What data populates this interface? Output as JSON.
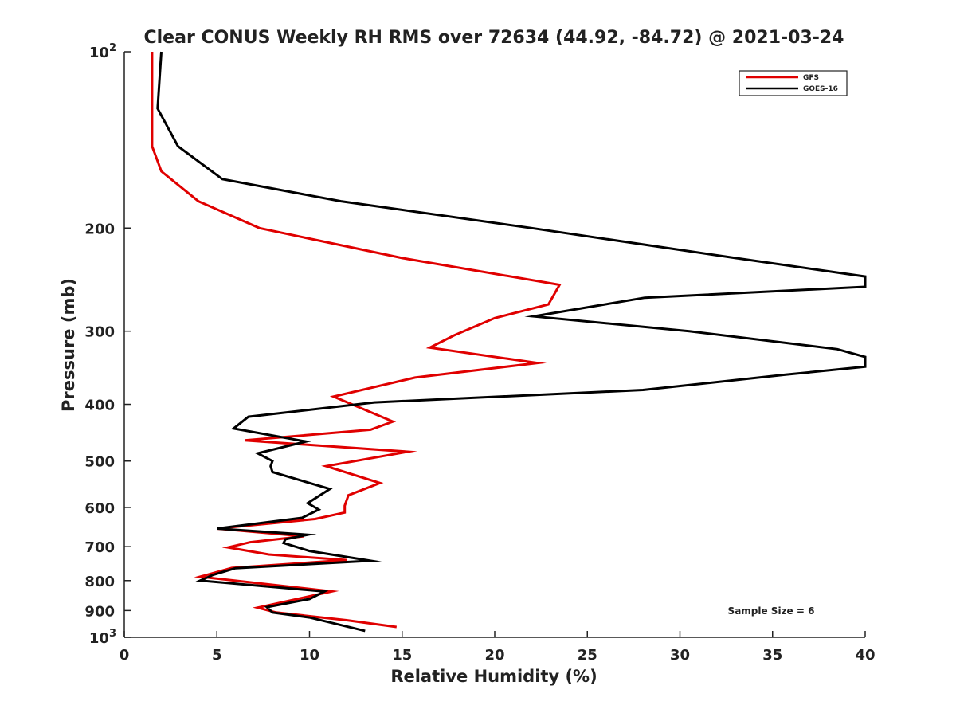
{
  "chart_data": {
    "type": "line",
    "title": "Clear CONUS Weekly RH RMS over 72634 (44.92, -84.72) @ 2021-03-24",
    "xlabel": "Relative Humidity (%)",
    "ylabel": "Pressure (mb)",
    "xlim": [
      0,
      40
    ],
    "ylim": [
      1000,
      100
    ],
    "yscale": "log",
    "xticks": [
      0,
      5,
      10,
      15,
      20,
      25,
      30,
      35,
      40
    ],
    "yticks": [
      100,
      200,
      300,
      400,
      500,
      600,
      700,
      800,
      900,
      1000
    ],
    "ytick_labels": {
      "100": {
        "base": "10",
        "exp": "2"
      },
      "1000": {
        "base": "10",
        "exp": "3"
      }
    },
    "legend_position": "top-right",
    "annotation": "Sample Size = 6",
    "series": [
      {
        "name": "GFS",
        "color": "#e00000",
        "points": [
          {
            "x": 1.5,
            "p": 100
          },
          {
            "x": 1.5,
            "p": 115
          },
          {
            "x": 1.5,
            "p": 130
          },
          {
            "x": 1.5,
            "p": 145
          },
          {
            "x": 2.0,
            "p": 160
          },
          {
            "x": 4.0,
            "p": 180
          },
          {
            "x": 7.3,
            "p": 200
          },
          {
            "x": 15.0,
            "p": 225
          },
          {
            "x": 23.5,
            "p": 250
          },
          {
            "x": 22.9,
            "p": 270
          },
          {
            "x": 20.0,
            "p": 285
          },
          {
            "x": 17.8,
            "p": 305
          },
          {
            "x": 16.5,
            "p": 320
          },
          {
            "x": 22.3,
            "p": 340
          },
          {
            "x": 15.7,
            "p": 360
          },
          {
            "x": 11.3,
            "p": 388
          },
          {
            "x": 14.5,
            "p": 428
          },
          {
            "x": 13.3,
            "p": 442
          },
          {
            "x": 6.5,
            "p": 461
          },
          {
            "x": 15.3,
            "p": 482
          },
          {
            "x": 10.9,
            "p": 510
          },
          {
            "x": 13.8,
            "p": 545
          },
          {
            "x": 12.1,
            "p": 572
          },
          {
            "x": 11.9,
            "p": 596
          },
          {
            "x": 11.9,
            "p": 612
          },
          {
            "x": 10.3,
            "p": 628
          },
          {
            "x": 5.0,
            "p": 652
          },
          {
            "x": 9.7,
            "p": 672
          },
          {
            "x": 6.8,
            "p": 688
          },
          {
            "x": 5.6,
            "p": 702
          },
          {
            "x": 7.8,
            "p": 722
          },
          {
            "x": 12.0,
            "p": 738
          },
          {
            "x": 5.8,
            "p": 761
          },
          {
            "x": 4.1,
            "p": 788
          },
          {
            "x": 11.2,
            "p": 835
          },
          {
            "x": 7.2,
            "p": 890
          },
          {
            "x": 8.2,
            "p": 907
          },
          {
            "x": 12.0,
            "p": 935
          },
          {
            "x": 14.7,
            "p": 960
          }
        ]
      },
      {
        "name": "GOES-16",
        "color": "#000000",
        "points": [
          {
            "x": 2.0,
            "p": 100
          },
          {
            "x": 1.8,
            "p": 125
          },
          {
            "x": 2.9,
            "p": 145
          },
          {
            "x": 5.3,
            "p": 165
          },
          {
            "x": 11.7,
            "p": 180
          },
          {
            "x": 22.0,
            "p": 200
          },
          {
            "x": 33.0,
            "p": 225
          },
          {
            "x": 40.0,
            "p": 242
          },
          {
            "x": 40.0,
            "p": 252
          },
          {
            "x": 28.1,
            "p": 263
          },
          {
            "x": 22.1,
            "p": 283
          },
          {
            "x": 30.5,
            "p": 300
          },
          {
            "x": 38.5,
            "p": 322
          },
          {
            "x": 40.0,
            "p": 332
          },
          {
            "x": 40.0,
            "p": 345
          },
          {
            "x": 35.7,
            "p": 356
          },
          {
            "x": 28.0,
            "p": 378
          },
          {
            "x": 13.5,
            "p": 397
          },
          {
            "x": 6.7,
            "p": 420
          },
          {
            "x": 5.9,
            "p": 440
          },
          {
            "x": 9.8,
            "p": 463
          },
          {
            "x": 7.2,
            "p": 485
          },
          {
            "x": 8.0,
            "p": 500
          },
          {
            "x": 7.9,
            "p": 510
          },
          {
            "x": 8.0,
            "p": 522
          },
          {
            "x": 11.1,
            "p": 558
          },
          {
            "x": 9.9,
            "p": 590
          },
          {
            "x": 10.5,
            "p": 605
          },
          {
            "x": 9.6,
            "p": 625
          },
          {
            "x": 5.0,
            "p": 652
          },
          {
            "x": 9.9,
            "p": 668
          },
          {
            "x": 8.7,
            "p": 680
          },
          {
            "x": 8.6,
            "p": 690
          },
          {
            "x": 10.0,
            "p": 712
          },
          {
            "x": 13.3,
            "p": 740
          },
          {
            "x": 6.0,
            "p": 762
          },
          {
            "x": 4.8,
            "p": 782
          },
          {
            "x": 4.1,
            "p": 800
          },
          {
            "x": 10.8,
            "p": 835
          },
          {
            "x": 10.0,
            "p": 860
          },
          {
            "x": 7.7,
            "p": 888
          },
          {
            "x": 8.0,
            "p": 907
          },
          {
            "x": 10.0,
            "p": 925
          },
          {
            "x": 13.0,
            "p": 975
          }
        ]
      }
    ]
  }
}
